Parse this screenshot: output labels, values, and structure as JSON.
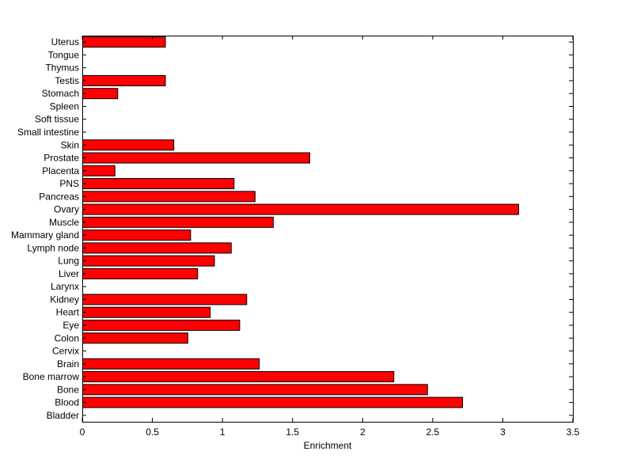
{
  "chart_data": {
    "type": "bar",
    "orientation": "horizontal",
    "xlabel": "Enrichment",
    "ylabel": "",
    "title": "",
    "xlim": [
      0,
      3.5
    ],
    "xticks": [
      0,
      0.5,
      1,
      1.5,
      2,
      2.5,
      3,
      3.5
    ],
    "xtick_labels": [
      "0",
      "0.5",
      "1",
      "1.5",
      "2",
      "2.5",
      "3",
      "3.5"
    ],
    "grid": false,
    "legend": "none",
    "bar_color": "#ff0000",
    "bar_edge_color": "#000000",
    "categories": [
      "Bladder",
      "Blood",
      "Bone",
      "Bone marrow",
      "Brain",
      "Cervix",
      "Colon",
      "Eye",
      "Heart",
      "Kidney",
      "Larynx",
      "Liver",
      "Lung",
      "Lymph node",
      "Mammary gland",
      "Muscle",
      "Ovary",
      "Pancreas",
      "PNS",
      "Placenta",
      "Prostate",
      "Skin",
      "Small intestine",
      "Soft tissue",
      "Spleen",
      "Stomach",
      "Testis",
      "Thymus",
      "Tongue",
      "Uterus"
    ],
    "values": [
      0,
      2.71,
      2.46,
      2.22,
      1.26,
      0,
      0.75,
      1.12,
      0.91,
      1.17,
      0,
      0.82,
      0.94,
      1.06,
      0.77,
      1.36,
      3.11,
      1.23,
      1.08,
      0.23,
      1.62,
      0.65,
      0,
      0,
      0,
      0.25,
      0.59,
      0,
      0,
      0.59
    ]
  }
}
